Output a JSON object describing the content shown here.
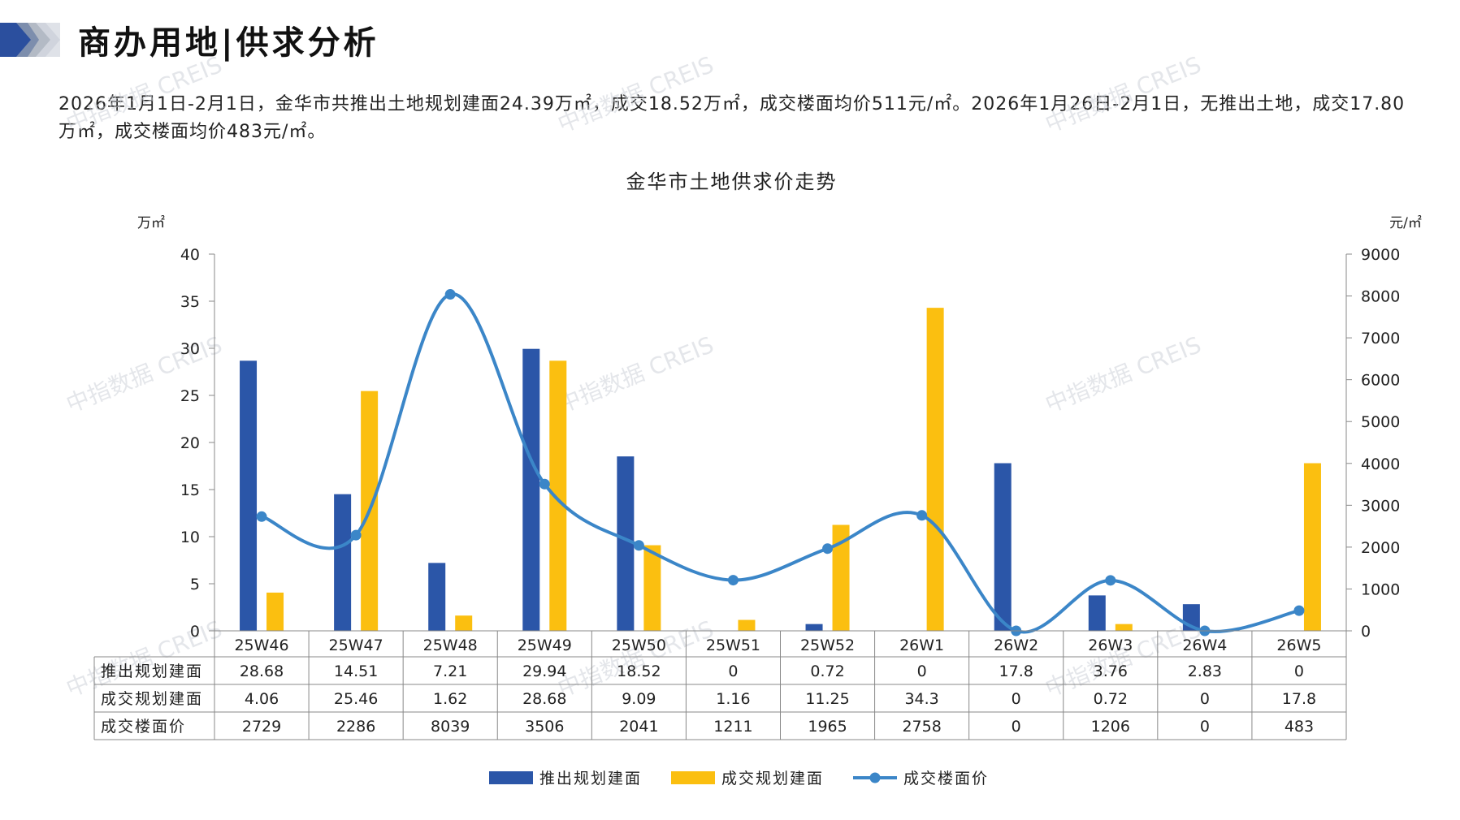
{
  "header": {
    "title": "商办用地|供求分析"
  },
  "summary": {
    "text": "2026年1月1日-2月1日，金华市共推出土地规划建面24.39万㎡，成交18.52万㎡，成交楼面均价511元/㎡。2026年1月26日-2月1日，无推出土地，成交17.80万㎡，成交楼面均价483元/㎡。"
  },
  "watermark": "中指数据 CREIS",
  "colors": {
    "supply": "#2b56a8",
    "deal": "#fbbf10",
    "price": "#3b86c8"
  },
  "chart_data": {
    "type": "bar",
    "title": "金华市土地供求价走势",
    "y_left_label": "万㎡",
    "y_right_label": "元/㎡",
    "y_left_ticks": [
      "0",
      "5",
      "10",
      "15",
      "20",
      "25",
      "30",
      "35",
      "40"
    ],
    "y_right_ticks": [
      "0",
      "1000",
      "2000",
      "3000",
      "4000",
      "5000",
      "6000",
      "7000",
      "8000",
      "9000"
    ],
    "ylim_left": [
      0,
      40
    ],
    "ylim_right": [
      0,
      9000
    ],
    "categories": [
      "25W46",
      "25W47",
      "25W48",
      "25W49",
      "25W50",
      "25W51",
      "25W52",
      "26W1",
      "26W2",
      "26W3",
      "26W4",
      "26W5"
    ],
    "series": [
      {
        "name": "推出规划建面",
        "type": "bar",
        "axis": "left",
        "values": [
          28.68,
          14.51,
          7.21,
          29.94,
          18.52,
          0,
          0.72,
          0,
          17.8,
          3.76,
          2.83,
          0
        ],
        "labels": [
          "28.68",
          "14.51",
          "7.21",
          "29.94",
          "18.52",
          "0",
          "0.72",
          "0",
          "17.8",
          "3.76",
          "2.83",
          "0"
        ]
      },
      {
        "name": "成交规划建面",
        "type": "bar",
        "axis": "left",
        "values": [
          4.06,
          25.46,
          1.62,
          28.68,
          9.09,
          1.16,
          11.25,
          34.3,
          0,
          0.72,
          0,
          17.8
        ],
        "labels": [
          "4.06",
          "25.46",
          "1.62",
          "28.68",
          "9.09",
          "1.16",
          "11.25",
          "34.3",
          "0",
          "0.72",
          "0",
          "17.8"
        ]
      },
      {
        "name": "成交楼面价",
        "type": "line",
        "axis": "right",
        "values": [
          2729,
          2286,
          8039,
          3506,
          2041,
          1211,
          1965,
          2758,
          0,
          1206,
          0,
          483
        ],
        "labels": [
          "2729",
          "2286",
          "8039",
          "3506",
          "2041",
          "1211",
          "1965",
          "2758",
          "0",
          "1206",
          "0",
          "483"
        ]
      }
    ],
    "legend_position": "bottom-center"
  }
}
